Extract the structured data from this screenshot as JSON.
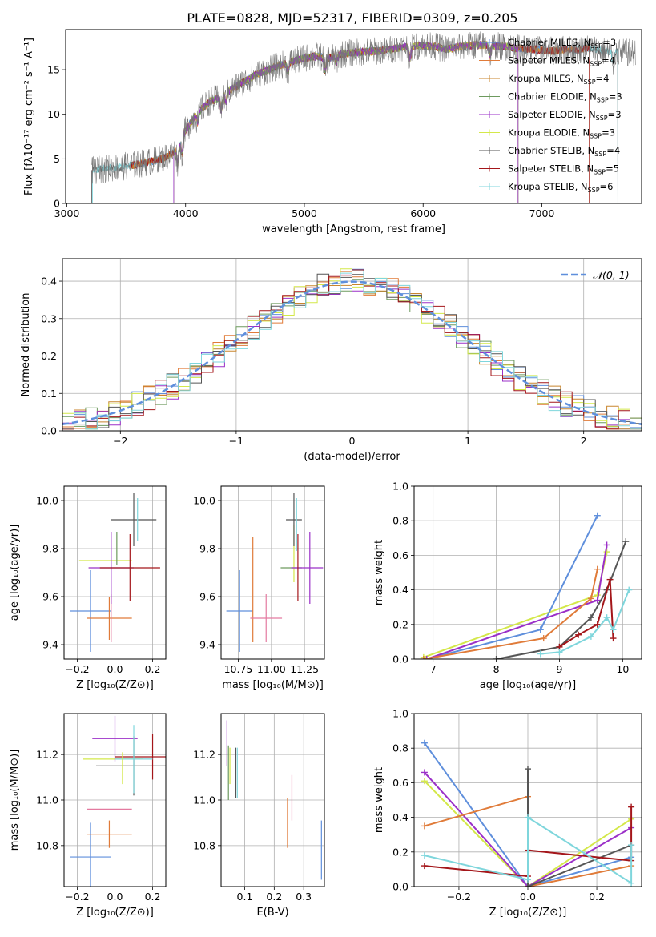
{
  "figure": {
    "title": "PLATE=0828, MJD=52317, FIBERID=0309, z=0.205"
  },
  "colors": {
    "ch_miles": "#5f8fdc",
    "sa_miles": "#e07b39",
    "kr_miles": "#c8852e",
    "ch_elodie": "#6d9a5e",
    "sa_elodie": "#9b30c8",
    "kr_elodie": "#d4e84a",
    "ch_stelib": "#555555",
    "sa_stelib": "#a4161a",
    "kr_stelib": "#7fd6dc",
    "pink": "#e47aa0"
  },
  "chart_data": [
    {
      "id": "spectrum",
      "type": "line",
      "xlabel": "wavelength [Angstrom, rest frame]",
      "ylabel": "Flux [fλ10⁻¹⁷ erg cm⁻² s⁻¹ A⁻¹]",
      "xlim": [
        2990,
        7840
      ],
      "ylim": [
        0,
        19.5
      ],
      "xticks": [
        "3000",
        "4000",
        "5000",
        "6000",
        "7000"
      ],
      "yticks": [
        "0",
        "5",
        "10",
        "15"
      ],
      "legend_position": "top-right",
      "legend": [
        {
          "label": "Chabrier MILES, N",
          "sub": "SSP",
          "count": "=3",
          "color": "#5f8fdc"
        },
        {
          "label": "Salpeter MILES, N",
          "sub": "SSP",
          "count": "=4",
          "color": "#e07b39"
        },
        {
          "label": "Kroupa MILES, N",
          "sub": "SSP",
          "count": "=4",
          "color": "#c8852e"
        },
        {
          "label": "Chabrier ELODIE, N",
          "sub": "SSP",
          "count": "=3",
          "color": "#6d9a5e"
        },
        {
          "label": "Salpeter ELODIE, N",
          "sub": "SSP",
          "count": "=3",
          "color": "#9b30c8"
        },
        {
          "label": "Kroupa ELODIE, N",
          "sub": "SSP",
          "count": "=3",
          "color": "#d4e84a"
        },
        {
          "label": "Chabrier STELIB, N",
          "sub": "SSP",
          "count": "=4",
          "color": "#555555"
        },
        {
          "label": "Salpeter STELIB, N",
          "sub": "SSP",
          "count": "=5",
          "color": "#a4161a"
        },
        {
          "label": "Kroupa STELIB, N",
          "sub": "SSP",
          "count": "=6",
          "color": "#7fd6dc"
        }
      ],
      "envelope": {
        "x": [
          3210,
          3300,
          3400,
          3500,
          3600,
          3700,
          3800,
          3900,
          4000,
          4100,
          4200,
          4300,
          4400,
          4500,
          4600,
          4700,
          4800,
          4900,
          5000,
          5100,
          5200,
          5300,
          5400,
          5500,
          5600,
          5700,
          5800,
          5900,
          6000,
          6100,
          6200,
          6300,
          6400,
          6500,
          6600,
          6700,
          6800,
          6900,
          7000,
          7100,
          7200,
          7300,
          7400,
          7500,
          7600,
          7700
        ],
        "y": [
          3.6,
          3.9,
          4.0,
          4.2,
          4.4,
          4.7,
          5.0,
          5.7,
          8.2,
          10.2,
          11.4,
          12.0,
          12.9,
          13.7,
          14.5,
          15.0,
          15.5,
          15.9,
          16.3,
          16.5,
          16.3,
          16.7,
          16.9,
          17.0,
          17.1,
          17.2,
          17.5,
          17.6,
          17.7,
          17.6,
          17.3,
          17.6,
          17.7,
          17.8,
          17.7,
          17.6,
          17.4,
          17.3,
          17.2,
          17.1,
          17.3,
          17.2,
          17.5,
          17.1,
          17.0,
          16.9
        ]
      },
      "model_cutoffs": [
        {
          "series": "ch_stelib",
          "x_start": 3210,
          "x_end": 7640
        },
        {
          "series": "kr_stelib",
          "x_start": 3215,
          "x_end": 7640
        },
        {
          "series": "ch_miles",
          "x_start": 3540,
          "x_end": 7400
        },
        {
          "series": "sa_miles",
          "x_start": 3540,
          "x_end": 7400
        },
        {
          "series": "kr_miles",
          "x_start": 3540,
          "x_end": 7400
        },
        {
          "series": "sa_stelib",
          "x_start": 3540,
          "x_end": 7400
        },
        {
          "series": "kr_elodie",
          "x_start": 3900,
          "x_end": 6800
        },
        {
          "series": "ch_elodie",
          "x_start": 3900,
          "x_end": 6800
        },
        {
          "series": "sa_elodie",
          "x_start": 3900,
          "x_end": 6800
        }
      ]
    },
    {
      "id": "residual_hist",
      "type": "histogram",
      "xlabel": "(data-model)/error",
      "ylabel": "Normed distribution",
      "xlim": [
        -2.5,
        2.5
      ],
      "ylim": [
        0,
        0.46
      ],
      "xticks": [
        "−2",
        "−1",
        "0",
        "1",
        "2"
      ],
      "yticks": [
        "0.0",
        "0.1",
        "0.2",
        "0.3",
        "0.4"
      ],
      "bin_width": 0.1,
      "legend_position": "top-right",
      "gaussian_label": "𝒩(0, 1)",
      "gaussian_color": "#5f8fdc",
      "gaussian": {
        "mean": 0,
        "sigma": 1
      }
    },
    {
      "id": "age_vs_Z",
      "type": "errorbar",
      "xlabel": "Z [log₁₀(Z/Z⊙)]",
      "ylabel": "age  [log₁₀(age/yr)]",
      "xlim": [
        -0.27,
        0.27
      ],
      "ylim": [
        9.34,
        10.06
      ],
      "xticks": [
        "−0.2",
        "0.0",
        "0.2"
      ],
      "yticks": [
        "9.4",
        "9.6",
        "9.8",
        "10.0"
      ],
      "points": [
        {
          "series": "ch_miles",
          "x": -0.13,
          "xerr": 0.11,
          "y": 9.54,
          "yerr": 0.17
        },
        {
          "series": "sa_miles",
          "x": -0.03,
          "xerr": 0.12,
          "y": 9.51,
          "yerr": 0.09
        },
        {
          "series": "pink",
          "x": -0.02,
          "xerr": 0.0,
          "y": 9.51,
          "yerr": 0.1
        },
        {
          "series": "kr_elodie",
          "x": -0.05,
          "xerr": 0.14,
          "y": 9.75,
          "yerr": 0.0
        },
        {
          "series": "sa_elodie",
          "x": -0.02,
          "xerr": 0.12,
          "y": 9.72,
          "yerr": 0.15
        },
        {
          "series": "ch_elodie",
          "x": 0.01,
          "xerr": 0.0,
          "y": 9.8,
          "yerr": 0.07
        },
        {
          "series": "sa_stelib",
          "x": 0.08,
          "xerr": 0.16,
          "y": 9.72,
          "yerr": 0.14
        },
        {
          "series": "ch_stelib",
          "x": 0.1,
          "xerr": 0.12,
          "y": 9.92,
          "yerr": 0.11
        },
        {
          "series": "kr_stelib",
          "x": 0.12,
          "xerr": 0.0,
          "y": 9.92,
          "yerr": 0.09
        }
      ]
    },
    {
      "id": "age_vs_mass",
      "type": "errorbar",
      "xlabel": "mass [log₁₀(M/M⊙)]",
      "ylabel": "",
      "xlim": [
        10.62,
        11.4
      ],
      "ylim": [
        9.34,
        10.06
      ],
      "xticks": [
        "10.75",
        "11.00",
        "11.25"
      ],
      "yticks": [
        "9.4",
        "9.6",
        "9.8",
        "10.0"
      ],
      "points": [
        {
          "series": "ch_miles",
          "x": 10.76,
          "xerr": 0.1,
          "y": 9.54,
          "yerr": 0.17
        },
        {
          "series": "sa_miles",
          "x": 10.86,
          "xerr": 0.0,
          "y": 9.63,
          "yerr": 0.22
        },
        {
          "series": "pink",
          "x": 10.96,
          "xerr": 0.12,
          "y": 9.51,
          "yerr": 0.1
        },
        {
          "series": "ch_elodie",
          "x": 11.15,
          "xerr": 0.08,
          "y": 9.72,
          "yerr": 0.0
        },
        {
          "series": "kr_elodie",
          "x": 11.17,
          "xerr": 0.0,
          "y": 9.78,
          "yerr": 0.12
        },
        {
          "series": "sa_elodie",
          "x": 11.27,
          "xerr": 0.12,
          "y": 9.72,
          "yerr": 0.0
        },
        {
          "series": "sa_stelib",
          "x": 11.2,
          "xerr": 0.0,
          "y": 9.72,
          "yerr": 0.14
        },
        {
          "series": "ch_stelib",
          "x": 11.17,
          "xerr": 0.06,
          "y": 9.92,
          "yerr": 0.11
        },
        {
          "series": "kr_stelib",
          "x": 11.19,
          "xerr": 0.0,
          "y": 9.9,
          "yerr": 0.11
        },
        {
          "series": "sa_elodie",
          "x": 11.29,
          "xerr": 0.0,
          "y": 9.72,
          "yerr": 0.15
        }
      ]
    },
    {
      "id": "weight_vs_age",
      "type": "line",
      "xlabel": "age  [log₁₀(age/yr)]",
      "ylabel": "mass weight",
      "xlim": [
        6.7,
        10.3
      ],
      "ylim": [
        0,
        1
      ],
      "xticks": [
        "7",
        "8",
        "9",
        "10"
      ],
      "yticks": [
        "0.0",
        "0.2",
        "0.4",
        "0.6",
        "0.8",
        "1.0"
      ],
      "series": [
        {
          "series": "kr_elodie",
          "x": [
            6.85,
            9.6,
            9.75
          ],
          "y": [
            0.01,
            0.37,
            0.62
          ]
        },
        {
          "series": "ch_miles",
          "x": [
            6.9,
            8.7,
            9.6
          ],
          "y": [
            0.0,
            0.17,
            0.83
          ]
        },
        {
          "series": "sa_elodie",
          "x": [
            6.9,
            9.6,
            9.75
          ],
          "y": [
            0.0,
            0.34,
            0.66
          ]
        },
        {
          "series": "sa_miles",
          "x": [
            6.85,
            8.75,
            9.5,
            9.6
          ],
          "y": [
            0.0,
            0.12,
            0.35,
            0.52
          ]
        },
        {
          "series": "ch_stelib",
          "x": [
            8.0,
            9.0,
            9.5,
            9.75,
            10.05
          ],
          "y": [
            0.0,
            0.07,
            0.24,
            0.4,
            0.68
          ]
        },
        {
          "series": "sa_stelib",
          "x": [
            9.0,
            9.3,
            9.6,
            9.8,
            9.85
          ],
          "y": [
            0.07,
            0.14,
            0.2,
            0.46,
            0.12
          ]
        },
        {
          "series": "kr_stelib",
          "x": [
            8.7,
            9.0,
            9.5,
            9.75,
            9.85,
            10.1
          ],
          "y": [
            0.03,
            0.04,
            0.13,
            0.24,
            0.17,
            0.4
          ]
        }
      ]
    },
    {
      "id": "mass_vs_Z",
      "type": "errorbar",
      "xlabel": "Z [log₁₀(Z/Z⊙)]",
      "ylabel": "mass [log₁₀(M/M⊙)]",
      "xlim": [
        -0.27,
        0.27
      ],
      "ylim": [
        10.62,
        11.38
      ],
      "xticks": [
        "−0.2",
        "0.0",
        "0.2"
      ],
      "yticks": [
        "10.8",
        "11.0",
        "11.2"
      ],
      "points": [
        {
          "series": "ch_miles",
          "x": -0.13,
          "xerr": 0.11,
          "y": 10.75,
          "yerr": 0.15
        },
        {
          "series": "sa_miles",
          "x": -0.03,
          "xerr": 0.12,
          "y": 10.85,
          "yerr": 0.06
        },
        {
          "series": "pink",
          "x": -0.03,
          "xerr": 0.12,
          "y": 10.96,
          "yerr": 0.0
        },
        {
          "series": "kr_elodie",
          "x": -0.01,
          "xerr": 0.16,
          "y": 11.18,
          "yerr": 0.0
        },
        {
          "series": "sa_elodie",
          "x": 0.0,
          "xerr": 0.12,
          "y": 11.27,
          "yerr": 0.1
        },
        {
          "series": "ch_stelib",
          "x": 0.1,
          "xerr": 0.2,
          "y": 11.15,
          "yerr": 0.13
        },
        {
          "series": "sa_stelib",
          "x": 0.2,
          "xerr": 0.2,
          "y": 11.19,
          "yerr": 0.1
        },
        {
          "series": "kr_stelib",
          "x": 0.1,
          "xerr": 0.1,
          "y": 11.18,
          "yerr": 0.15
        },
        {
          "series": "kr_elodie",
          "x": 0.04,
          "xerr": 0.0,
          "y": 11.14,
          "yerr": 0.07
        }
      ]
    },
    {
      "id": "mass_vs_ebv",
      "type": "errorbar",
      "xlabel": "E(B-V)",
      "ylabel": "",
      "xlim": [
        0.02,
        0.37
      ],
      "ylim": [
        10.62,
        11.38
      ],
      "xticks": [
        "0.1",
        "0.2",
        "0.3"
      ],
      "yticks": [
        "10.8",
        "11.0",
        "11.2"
      ],
      "points": [
        {
          "series": "sa_elodie",
          "x": 0.04,
          "xerr": 0.0,
          "y": 11.25,
          "yerr": 0.1
        },
        {
          "series": "ch_elodie",
          "x": 0.045,
          "xerr": 0.0,
          "y": 11.12,
          "yerr": 0.12
        },
        {
          "series": "kr_elodie",
          "x": 0.05,
          "xerr": 0.0,
          "y": 11.15,
          "yerr": 0.08
        },
        {
          "series": "ch_stelib",
          "x": 0.07,
          "xerr": 0.0,
          "y": 11.12,
          "yerr": 0.11
        },
        {
          "series": "kr_stelib",
          "x": 0.075,
          "xerr": 0.0,
          "y": 11.12,
          "yerr": 0.11
        },
        {
          "series": "sa_miles",
          "x": 0.245,
          "xerr": 0.0,
          "y": 10.9,
          "yerr": 0.11
        },
        {
          "series": "pink",
          "x": 0.26,
          "xerr": 0.0,
          "y": 11.01,
          "yerr": 0.1
        },
        {
          "series": "ch_miles",
          "x": 0.36,
          "xerr": 0.0,
          "y": 10.78,
          "yerr": 0.13
        }
      ]
    },
    {
      "id": "weight_vs_Z",
      "type": "line",
      "xlabel": "Z [log₁₀(Z/Z⊙)]",
      "ylabel": "mass weight",
      "xlim": [
        -0.33,
        0.33
      ],
      "ylim": [
        0,
        1
      ],
      "xticks": [
        "−0.2",
        "0.0",
        "0.2"
      ],
      "yticks": [
        "0.0",
        "0.2",
        "0.4",
        "0.6",
        "0.8",
        "1.0"
      ],
      "series": [
        {
          "series": "ch_miles",
          "x": [
            -0.3,
            0.0,
            0.3
          ],
          "y": [
            0.83,
            0.0,
            0.17
          ]
        },
        {
          "series": "kr_elodie",
          "x": [
            -0.3,
            0.0,
            0.3
          ],
          "y": [
            0.61,
            0.0,
            0.39
          ]
        },
        {
          "series": "sa_elodie",
          "x": [
            -0.3,
            0.0,
            0.3
          ],
          "y": [
            0.66,
            0.0,
            0.34
          ]
        },
        {
          "series": "sa_miles",
          "x": [
            -0.3,
            0.0,
            0.0,
            0.3
          ],
          "y": [
            0.35,
            0.52,
            0.0,
            0.12
          ]
        },
        {
          "series": "ch_stelib",
          "x": [
            0.0,
            0.0,
            0.3
          ],
          "y": [
            0.68,
            0.0,
            0.24
          ]
        },
        {
          "series": "sa_stelib",
          "x": [
            -0.3,
            0.0,
            0.0,
            0.3,
            0.3
          ],
          "y": [
            0.12,
            0.06,
            0.21,
            0.15,
            0.46
          ]
        },
        {
          "series": "kr_stelib",
          "x": [
            -0.3,
            0.0,
            0.0,
            0.3,
            0.3
          ],
          "y": [
            0.18,
            0.04,
            0.4,
            0.02,
            0.24
          ]
        }
      ]
    }
  ]
}
